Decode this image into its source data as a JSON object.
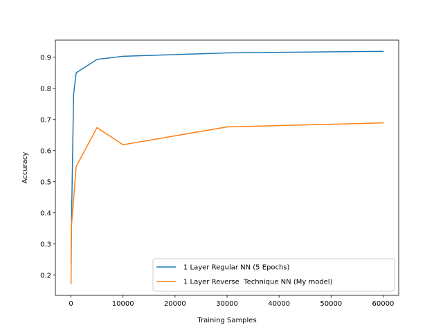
{
  "chart_data": {
    "type": "line",
    "title": "",
    "xlabel": "Training Samples",
    "ylabel": "Accuracy",
    "xlim": [
      -3000,
      63000
    ],
    "ylim": [
      0.135,
      0.955
    ],
    "xticks": [
      0,
      10000,
      20000,
      30000,
      40000,
      50000,
      60000
    ],
    "xtick_labels": [
      "0",
      "10000",
      "20000",
      "30000",
      "40000",
      "50000",
      "60000"
    ],
    "yticks": [
      0.2,
      0.3,
      0.4,
      0.5,
      0.6,
      0.7,
      0.8,
      0.9
    ],
    "ytick_labels": [
      "0.2",
      "0.3",
      "0.4",
      "0.5",
      "0.6",
      "0.7",
      "0.8",
      "0.9"
    ],
    "grid": false,
    "legend_position": "lower-right",
    "series": [
      {
        "name": "1 Layer Regular NN (5 Epochs)",
        "color": "#1f77b4",
        "x": [
          10,
          100,
          500,
          1000,
          5000,
          10000,
          30000,
          60000
        ],
        "y": [
          0.24,
          0.37,
          0.78,
          0.85,
          0.893,
          0.903,
          0.914,
          0.919
        ]
      },
      {
        "name": "1 Layer Reverse  Technique NN (My model)",
        "color": "#ff7f0e",
        "x": [
          10,
          100,
          500,
          1000,
          5000,
          10000,
          30000,
          60000
        ],
        "y": [
          0.172,
          0.36,
          0.44,
          0.549,
          0.674,
          0.619,
          0.676,
          0.689
        ]
      }
    ]
  }
}
